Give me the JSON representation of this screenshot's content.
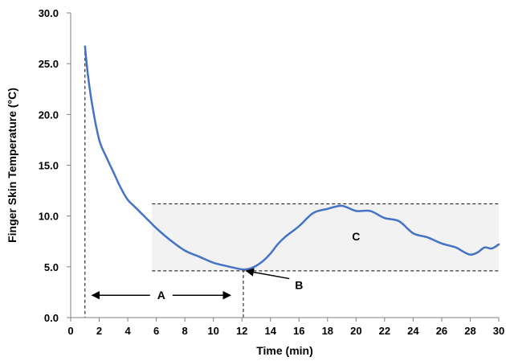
{
  "chart_data": {
    "type": "line",
    "title": "",
    "xlabel": "Time (min)",
    "ylabel": "Finger Skin Temperature (°C)",
    "xlim": [
      0,
      30
    ],
    "ylim": [
      0,
      30
    ],
    "x_ticks": [
      "0",
      "2",
      "4",
      "6",
      "8",
      "10",
      "12",
      "14",
      "16",
      "18",
      "20",
      "22",
      "24",
      "26",
      "28",
      "30"
    ],
    "y_ticks": [
      "0.0",
      "5.0",
      "10.0",
      "15.0",
      "20.0",
      "25.0",
      "30.0"
    ],
    "grid": false,
    "legend": "none",
    "series": [
      {
        "color": "#4472c4",
        "x": [
          1.0,
          1.2,
          1.5,
          2.0,
          2.5,
          3.0,
          3.5,
          4.0,
          4.5,
          5.0,
          5.5,
          6.0,
          7.0,
          8.0,
          9.0,
          10.0,
          11.0,
          12.0,
          12.5,
          13.0,
          13.5,
          14.0,
          14.5,
          15.0,
          16.0,
          17.0,
          18.0,
          19.0,
          20.0,
          21.0,
          22.0,
          23.0,
          24.0,
          25.0,
          26.0,
          27.0,
          27.5,
          28.0,
          28.5,
          29.0,
          29.5,
          30.0
        ],
        "values": [
          26.7,
          24.0,
          21.0,
          17.5,
          15.8,
          14.3,
          12.8,
          11.6,
          10.9,
          10.2,
          9.5,
          8.8,
          7.6,
          6.6,
          6.0,
          5.4,
          5.05,
          4.75,
          4.8,
          5.1,
          5.6,
          6.3,
          7.2,
          7.9,
          9.0,
          10.3,
          10.7,
          11.0,
          10.5,
          10.5,
          9.8,
          9.5,
          8.3,
          7.9,
          7.3,
          6.9,
          6.5,
          6.2,
          6.4,
          6.9,
          6.8,
          7.2
        ]
      }
    ],
    "band": {
      "y_min": 4.6,
      "y_max": 11.2,
      "x_start": 5.7,
      "x_end": 30
    },
    "vertical_markers": [
      1.0,
      12.1
    ],
    "annotations": {
      "a": {
        "text": "A",
        "x_from": 1.5,
        "x_to": 11.2,
        "y": 2.2
      },
      "b": {
        "text": "B",
        "x": 16.0,
        "y": 3.2,
        "points_to_x": 12.3,
        "points_to_y": 4.6
      },
      "c": {
        "text": "C",
        "x": 20.0,
        "y": 8.0
      }
    }
  }
}
